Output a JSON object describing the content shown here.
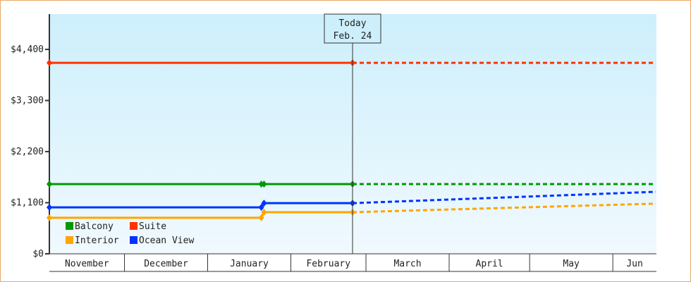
{
  "chart_data": {
    "type": "line",
    "title": "",
    "xlabel": "",
    "ylabel": "",
    "ylim": [
      0,
      5160
    ],
    "xlim": [
      "11-03",
      "06-17"
    ],
    "y_ticks": [
      {
        "value": 0,
        "label": "$0"
      },
      {
        "value": 1100,
        "label": "$1,100"
      },
      {
        "value": 2200,
        "label": "$2,200"
      },
      {
        "value": 3300,
        "label": "$3,300"
      },
      {
        "value": 4400,
        "label": "$4,400"
      }
    ],
    "x_ticks": [
      {
        "start": "11-01",
        "label": "November"
      },
      {
        "start": "12-01",
        "label": "December"
      },
      {
        "start": "01-01",
        "label": "January"
      },
      {
        "start": "02-01",
        "label": "February"
      },
      {
        "start": "03-01",
        "label": "March"
      },
      {
        "start": "04-01",
        "label": "April"
      },
      {
        "start": "05-01",
        "label": "May"
      },
      {
        "start": "06-01",
        "label": "Jun"
      }
    ],
    "grid": false,
    "legend_placement": "bottom-left",
    "today_marker": {
      "date": "02-24",
      "line1": "Today",
      "line2": "Feb. 24"
    },
    "series": [
      {
        "name": "Balcony",
        "color": "#009900",
        "values": [
          [
            "11-03",
            1500
          ],
          [
            "01-21",
            1500
          ],
          [
            "01-22",
            1500
          ],
          [
            "02-24",
            1500
          ]
        ],
        "forecast": [
          [
            "02-24",
            1500
          ],
          [
            "06-17",
            1500
          ]
        ]
      },
      {
        "name": "Suite",
        "color": "#ff3300",
        "values": [
          [
            "11-03",
            4110
          ],
          [
            "02-24",
            4110
          ]
        ],
        "forecast": [
          [
            "02-24",
            4110
          ],
          [
            "06-17",
            4110
          ]
        ]
      },
      {
        "name": "Interior",
        "color": "#ffa500",
        "values": [
          [
            "11-03",
            775
          ],
          [
            "01-21",
            775
          ],
          [
            "01-22",
            895
          ],
          [
            "02-24",
            895
          ]
        ],
        "forecast": [
          [
            "02-24",
            895
          ],
          [
            "06-17",
            1080
          ]
        ]
      },
      {
        "name": "Ocean View",
        "color": "#0033ff",
        "values": [
          [
            "11-03",
            1000
          ],
          [
            "01-21",
            1000
          ],
          [
            "01-22",
            1090
          ],
          [
            "02-24",
            1090
          ]
        ],
        "forecast": [
          [
            "02-24",
            1090
          ],
          [
            "06-17",
            1335
          ]
        ]
      }
    ]
  }
}
